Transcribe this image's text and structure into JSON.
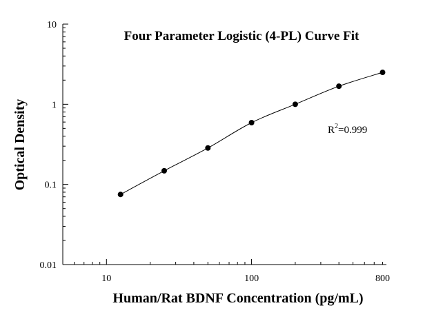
{
  "chart_data": {
    "type": "scatter",
    "title": "Four Parameter Logistic (4-PL) Curve Fit",
    "xlabel": "Human/Rat BDNF Concentration (pg/mL)",
    "ylabel": "Optical Density",
    "x_scale": "log",
    "y_scale": "log",
    "xlim": [
      5,
      850
    ],
    "ylim": [
      0.01,
      10
    ],
    "x_ticks": [
      10,
      100,
      800
    ],
    "x_tick_labels": [
      "10",
      "100",
      "800"
    ],
    "y_ticks": [
      0.01,
      0.1,
      1,
      10
    ],
    "y_tick_labels": [
      "0.01",
      "0.1",
      "1",
      "10"
    ],
    "grid": false,
    "legend": "none",
    "series": [
      {
        "x": [
          12.5,
          25,
          50,
          100,
          200,
          400,
          800
        ],
        "y": [
          0.075,
          0.148,
          0.285,
          0.59,
          1.0,
          1.68,
          2.5
        ]
      }
    ],
    "annotation": {
      "base": "R",
      "sup": "2",
      "rest": "=0.999"
    },
    "colors": {
      "points": "#000000",
      "curve": "#000000",
      "axis": "#000000"
    }
  }
}
